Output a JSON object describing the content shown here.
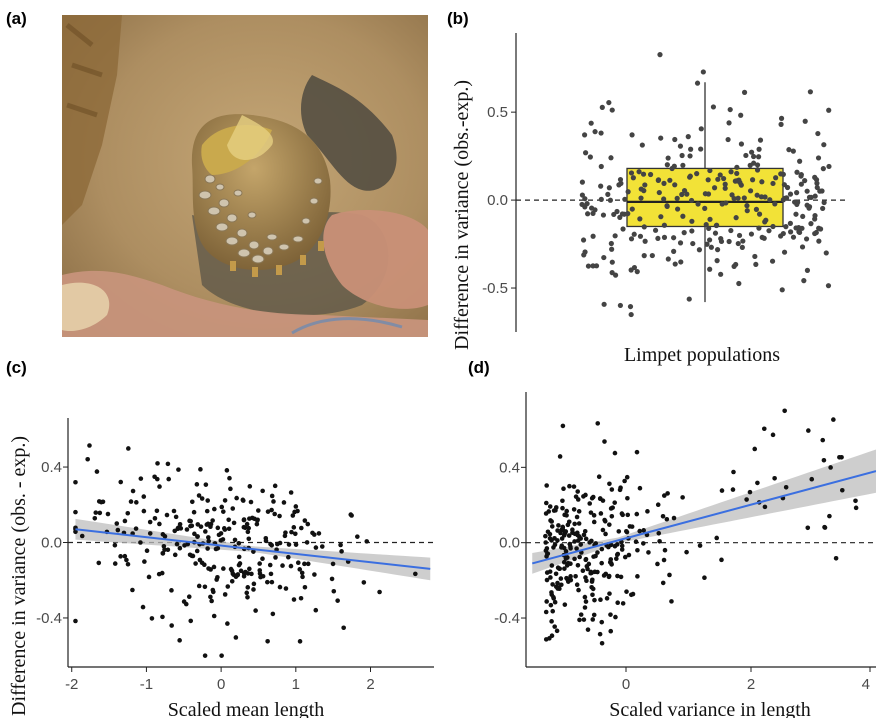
{
  "panels": {
    "a": {
      "label": "(a)"
    },
    "b": {
      "label": "(b)"
    },
    "c": {
      "label": "(c)"
    },
    "d": {
      "label": "(d)"
    }
  },
  "colors": {
    "box_fill": "#f2e237",
    "points_b": "#444444",
    "points": "#111111",
    "fit_line": "#3b6fe0",
    "ci_band": "#bdbdbd"
  },
  "chart_data": [
    {
      "panel": "b",
      "type": "scatter",
      "xlabel": "Limpet populations",
      "ylabel": "Difference in variance (obs.-exp.)",
      "ylim": [
        -0.75,
        0.95
      ],
      "yticks": [
        -0.5,
        0.0,
        0.5
      ],
      "ytick_labels": [
        "-0.5",
        "0.0",
        "0.5"
      ],
      "reference_line": 0.0,
      "boxplot": {
        "q1": -0.15,
        "median": -0.01,
        "q3": 0.18,
        "whisker_low": -0.58,
        "whisker_high": 0.67
      },
      "n_points": 300,
      "grid": false
    },
    {
      "panel": "c",
      "type": "scatter",
      "xlabel": "Scaled mean length",
      "ylabel": "Difference in variance (obs. - exp.)",
      "xlim": [
        -2.05,
        2.85
      ],
      "ylim": [
        -0.66,
        0.66
      ],
      "xticks": [
        -2,
        -1,
        0,
        1,
        2
      ],
      "xtick_labels": [
        "-2",
        "-1",
        "0",
        "1",
        "2"
      ],
      "yticks": [
        -0.4,
        0.0,
        0.4
      ],
      "ytick_labels": [
        "-0.4",
        "0.0",
        "0.4"
      ],
      "reference_line": 0.0,
      "fit": {
        "x": [
          -1.95,
          2.8
        ],
        "y": [
          0.07,
          -0.14
        ],
        "ci_halfwidth": [
          0.04,
          0.045
        ]
      },
      "n_points": 300,
      "grid": false
    },
    {
      "panel": "d",
      "type": "scatter",
      "xlabel": "Scaled variance in length",
      "ylabel": "",
      "xlim": [
        -1.6,
        4.0
      ],
      "ylim": [
        -0.66,
        0.8
      ],
      "xticks": [
        0,
        2,
        4
      ],
      "xtick_labels": [
        "0",
        "2",
        "4"
      ],
      "yticks": [
        -0.4,
        0.0,
        0.4
      ],
      "ytick_labels": [
        "-0.4",
        "0.0",
        "0.4"
      ],
      "reference_line": 0.0,
      "fit": {
        "x": [
          -1.5,
          4.0
        ],
        "y": [
          -0.11,
          0.38
        ],
        "ci_halfwidth": [
          0.04,
          0.1
        ]
      },
      "n_points": 310,
      "grid": false
    }
  ]
}
